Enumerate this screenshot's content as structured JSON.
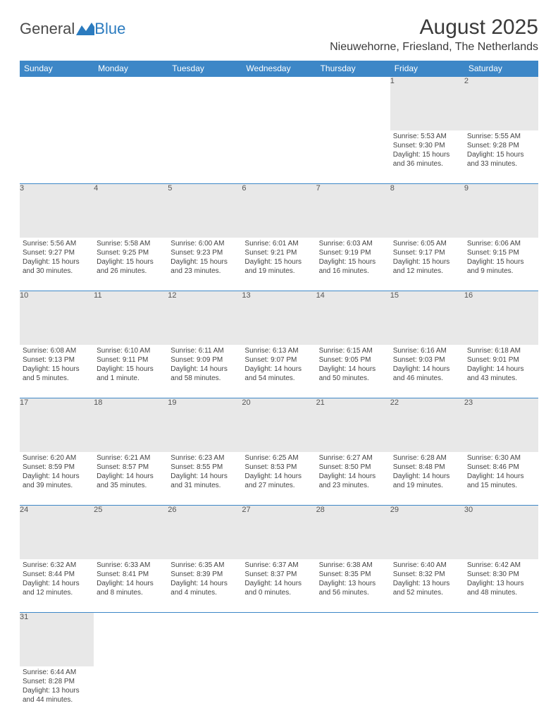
{
  "brand": {
    "part1": "General",
    "part2": "Blue"
  },
  "title": "August 2025",
  "location": "Nieuwehorne, Friesland, The Netherlands",
  "colors": {
    "header_bg": "#3d87c7",
    "daynum_bg": "#e8e8e8",
    "text": "#444444"
  },
  "weekdays": [
    "Sunday",
    "Monday",
    "Tuesday",
    "Wednesday",
    "Thursday",
    "Friday",
    "Saturday"
  ],
  "weeks": [
    [
      null,
      null,
      null,
      null,
      null,
      {
        "n": "1",
        "sr": "Sunrise: 5:53 AM",
        "ss": "Sunset: 9:30 PM",
        "dl": "Daylight: 15 hours and 36 minutes."
      },
      {
        "n": "2",
        "sr": "Sunrise: 5:55 AM",
        "ss": "Sunset: 9:28 PM",
        "dl": "Daylight: 15 hours and 33 minutes."
      }
    ],
    [
      {
        "n": "3",
        "sr": "Sunrise: 5:56 AM",
        "ss": "Sunset: 9:27 PM",
        "dl": "Daylight: 15 hours and 30 minutes."
      },
      {
        "n": "4",
        "sr": "Sunrise: 5:58 AM",
        "ss": "Sunset: 9:25 PM",
        "dl": "Daylight: 15 hours and 26 minutes."
      },
      {
        "n": "5",
        "sr": "Sunrise: 6:00 AM",
        "ss": "Sunset: 9:23 PM",
        "dl": "Daylight: 15 hours and 23 minutes."
      },
      {
        "n": "6",
        "sr": "Sunrise: 6:01 AM",
        "ss": "Sunset: 9:21 PM",
        "dl": "Daylight: 15 hours and 19 minutes."
      },
      {
        "n": "7",
        "sr": "Sunrise: 6:03 AM",
        "ss": "Sunset: 9:19 PM",
        "dl": "Daylight: 15 hours and 16 minutes."
      },
      {
        "n": "8",
        "sr": "Sunrise: 6:05 AM",
        "ss": "Sunset: 9:17 PM",
        "dl": "Daylight: 15 hours and 12 minutes."
      },
      {
        "n": "9",
        "sr": "Sunrise: 6:06 AM",
        "ss": "Sunset: 9:15 PM",
        "dl": "Daylight: 15 hours and 9 minutes."
      }
    ],
    [
      {
        "n": "10",
        "sr": "Sunrise: 6:08 AM",
        "ss": "Sunset: 9:13 PM",
        "dl": "Daylight: 15 hours and 5 minutes."
      },
      {
        "n": "11",
        "sr": "Sunrise: 6:10 AM",
        "ss": "Sunset: 9:11 PM",
        "dl": "Daylight: 15 hours and 1 minute."
      },
      {
        "n": "12",
        "sr": "Sunrise: 6:11 AM",
        "ss": "Sunset: 9:09 PM",
        "dl": "Daylight: 14 hours and 58 minutes."
      },
      {
        "n": "13",
        "sr": "Sunrise: 6:13 AM",
        "ss": "Sunset: 9:07 PM",
        "dl": "Daylight: 14 hours and 54 minutes."
      },
      {
        "n": "14",
        "sr": "Sunrise: 6:15 AM",
        "ss": "Sunset: 9:05 PM",
        "dl": "Daylight: 14 hours and 50 minutes."
      },
      {
        "n": "15",
        "sr": "Sunrise: 6:16 AM",
        "ss": "Sunset: 9:03 PM",
        "dl": "Daylight: 14 hours and 46 minutes."
      },
      {
        "n": "16",
        "sr": "Sunrise: 6:18 AM",
        "ss": "Sunset: 9:01 PM",
        "dl": "Daylight: 14 hours and 43 minutes."
      }
    ],
    [
      {
        "n": "17",
        "sr": "Sunrise: 6:20 AM",
        "ss": "Sunset: 8:59 PM",
        "dl": "Daylight: 14 hours and 39 minutes."
      },
      {
        "n": "18",
        "sr": "Sunrise: 6:21 AM",
        "ss": "Sunset: 8:57 PM",
        "dl": "Daylight: 14 hours and 35 minutes."
      },
      {
        "n": "19",
        "sr": "Sunrise: 6:23 AM",
        "ss": "Sunset: 8:55 PM",
        "dl": "Daylight: 14 hours and 31 minutes."
      },
      {
        "n": "20",
        "sr": "Sunrise: 6:25 AM",
        "ss": "Sunset: 8:53 PM",
        "dl": "Daylight: 14 hours and 27 minutes."
      },
      {
        "n": "21",
        "sr": "Sunrise: 6:27 AM",
        "ss": "Sunset: 8:50 PM",
        "dl": "Daylight: 14 hours and 23 minutes."
      },
      {
        "n": "22",
        "sr": "Sunrise: 6:28 AM",
        "ss": "Sunset: 8:48 PM",
        "dl": "Daylight: 14 hours and 19 minutes."
      },
      {
        "n": "23",
        "sr": "Sunrise: 6:30 AM",
        "ss": "Sunset: 8:46 PM",
        "dl": "Daylight: 14 hours and 15 minutes."
      }
    ],
    [
      {
        "n": "24",
        "sr": "Sunrise: 6:32 AM",
        "ss": "Sunset: 8:44 PM",
        "dl": "Daylight: 14 hours and 12 minutes."
      },
      {
        "n": "25",
        "sr": "Sunrise: 6:33 AM",
        "ss": "Sunset: 8:41 PM",
        "dl": "Daylight: 14 hours and 8 minutes."
      },
      {
        "n": "26",
        "sr": "Sunrise: 6:35 AM",
        "ss": "Sunset: 8:39 PM",
        "dl": "Daylight: 14 hours and 4 minutes."
      },
      {
        "n": "27",
        "sr": "Sunrise: 6:37 AM",
        "ss": "Sunset: 8:37 PM",
        "dl": "Daylight: 14 hours and 0 minutes."
      },
      {
        "n": "28",
        "sr": "Sunrise: 6:38 AM",
        "ss": "Sunset: 8:35 PM",
        "dl": "Daylight: 13 hours and 56 minutes."
      },
      {
        "n": "29",
        "sr": "Sunrise: 6:40 AM",
        "ss": "Sunset: 8:32 PM",
        "dl": "Daylight: 13 hours and 52 minutes."
      },
      {
        "n": "30",
        "sr": "Sunrise: 6:42 AM",
        "ss": "Sunset: 8:30 PM",
        "dl": "Daylight: 13 hours and 48 minutes."
      }
    ],
    [
      {
        "n": "31",
        "sr": "Sunrise: 6:44 AM",
        "ss": "Sunset: 8:28 PM",
        "dl": "Daylight: 13 hours and 44 minutes."
      },
      null,
      null,
      null,
      null,
      null,
      null
    ]
  ]
}
